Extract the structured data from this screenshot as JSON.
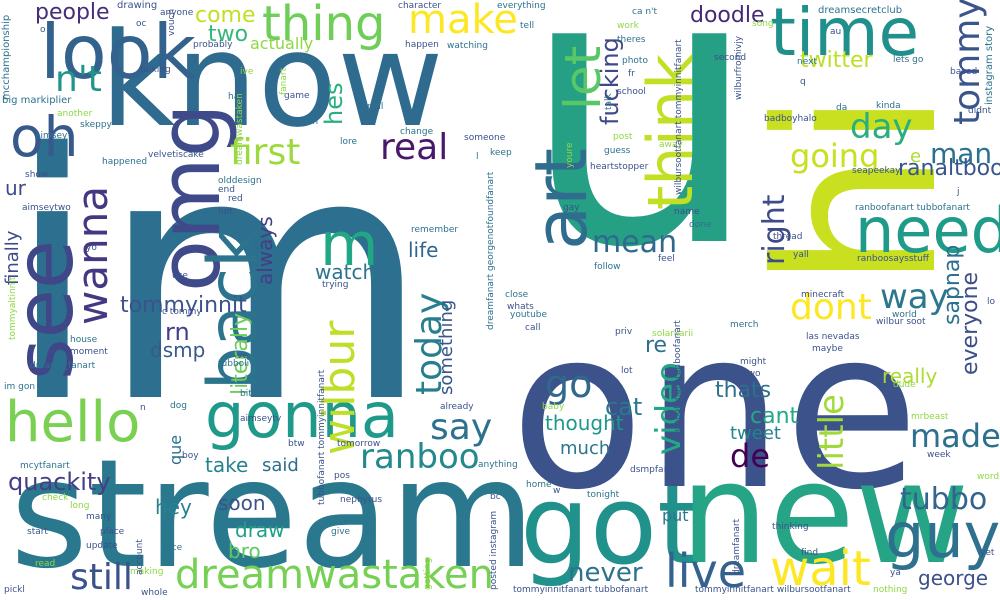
{
  "words": [
    {
      "text": "im",
      "color": "#2c6f8f"
    },
    {
      "text": "u",
      "color": "#25a085"
    },
    {
      "text": "one",
      "color": "#3b528b"
    },
    {
      "text": "know",
      "color": "#2e6b8e"
    },
    {
      "text": "stream",
      "color": "#2a788e"
    },
    {
      "text": "hi",
      "color": "#c8e020"
    },
    {
      "text": "got",
      "color": "#21918c"
    },
    {
      "text": "new",
      "color": "#25a486"
    },
    {
      "text": "look",
      "color": "#33628d"
    },
    {
      "text": "omg",
      "color": "#3e4a89"
    },
    {
      "text": "see",
      "color": "#3f4788"
    },
    {
      "text": "oh",
      "color": "#38598c"
    },
    {
      "text": "hello",
      "color": "#7ad151"
    },
    {
      "text": "gonna",
      "color": "#1f9a8a"
    },
    {
      "text": "back",
      "color": "#2c738e"
    },
    {
      "text": "art",
      "color": "#2f6c8e"
    },
    {
      "text": "let",
      "color": "#58c765"
    },
    {
      "text": "think",
      "color": "#c2df23"
    },
    {
      "text": "time",
      "color": "#21908d"
    },
    {
      "text": "need",
      "color": "#1e9c89"
    },
    {
      "text": "thing",
      "color": "#6ece58"
    },
    {
      "text": "make",
      "color": "#fde725"
    },
    {
      "text": "guy",
      "color": "#2d718e"
    },
    {
      "text": "wait",
      "color": "#fde725"
    },
    {
      "text": "live",
      "color": "#34618d"
    },
    {
      "text": "dreamwastaken",
      "color": "#75d054"
    },
    {
      "text": "still",
      "color": "#3b528b"
    },
    {
      "text": "wilbur",
      "color": "#bddf26"
    },
    {
      "text": "m",
      "color": "#22a785"
    },
    {
      "text": "wanna",
      "color": "#453781"
    },
    {
      "text": "first",
      "color": "#9bd93c"
    },
    {
      "text": "real",
      "color": "#48186a"
    },
    {
      "text": "say",
      "color": "#2c728e"
    },
    {
      "text": "go",
      "color": "#31688e"
    },
    {
      "text": "ranboo",
      "color": "#23898e"
    },
    {
      "text": "video",
      "color": "#22a884"
    },
    {
      "text": "today",
      "color": "#277f8e"
    },
    {
      "text": "day",
      "color": "#29af7f"
    },
    {
      "text": "dont",
      "color": "#fde725"
    },
    {
      "text": "way",
      "color": "#2a778e"
    },
    {
      "text": "made",
      "color": "#2e6f8e"
    },
    {
      "text": "de",
      "color": "#440154"
    },
    {
      "text": "right",
      "color": "#3e4a89"
    },
    {
      "text": "mean",
      "color": "#31688e"
    },
    {
      "text": "going",
      "color": "#c8e020"
    },
    {
      "text": "man",
      "color": "#2c728e"
    },
    {
      "text": "tommy",
      "color": "#3a548c"
    },
    {
      "text": "tubbo",
      "color": "#32648e"
    },
    {
      "text": "little",
      "color": "#9fda3a"
    },
    {
      "text": "george",
      "color": "#3c508b"
    },
    {
      "text": "never",
      "color": "#2c728e"
    },
    {
      "text": "quackity",
      "color": "#433e85"
    },
    {
      "text": "n't",
      "color": "#1f968b"
    },
    {
      "text": "tommyinnit",
      "color": "#3b528b"
    },
    {
      "text": "twitter",
      "color": "#bddf26"
    },
    {
      "text": "doodle",
      "color": "#482878"
    },
    {
      "text": "ranaltboo",
      "color": "#39568c"
    },
    {
      "text": "sapnap",
      "color": "#2d708e"
    },
    {
      "text": "everyone",
      "color": "#3d4e8a"
    },
    {
      "text": "watch",
      "color": "#2b748e"
    },
    {
      "text": "literally",
      "color": "#6ccd5a"
    },
    {
      "text": "always",
      "color": "#433e85"
    },
    {
      "text": "life",
      "color": "#32658e"
    },
    {
      "text": "thought",
      "color": "#1f988b"
    },
    {
      "text": "fucking",
      "color": "#3f4889"
    },
    {
      "text": "cat",
      "color": "#2a788e"
    },
    {
      "text": "thats",
      "color": "#2d708e"
    },
    {
      "text": "cant",
      "color": "#22a884"
    },
    {
      "text": "really",
      "color": "#addc30"
    },
    {
      "text": "tweet",
      "color": "#26828e"
    },
    {
      "text": "much",
      "color": "#2b758e"
    },
    {
      "text": "two",
      "color": "#35b779"
    },
    {
      "text": "come",
      "color": "#c2df23"
    },
    {
      "text": "people",
      "color": "#472c7a"
    },
    {
      "text": "actually",
      "color": "#8fd744"
    },
    {
      "text": "hes",
      "color": "#29af7f"
    },
    {
      "text": "rn",
      "color": "#424086"
    },
    {
      "text": "dsmp",
      "color": "#38598c"
    },
    {
      "text": "ur",
      "color": "#3e4989"
    },
    {
      "text": "take",
      "color": "#26828e"
    },
    {
      "text": "said",
      "color": "#2d708e"
    },
    {
      "text": "soon",
      "color": "#3b528b"
    },
    {
      "text": "hey",
      "color": "#26828e"
    },
    {
      "text": "bro",
      "color": "#5ec962"
    },
    {
      "text": "draw",
      "color": "#1fa188"
    },
    {
      "text": "finally",
      "color": "#3e4989"
    },
    {
      "text": "something",
      "color": "#39568c"
    },
    {
      "text": "put",
      "color": "#2a788e"
    },
    {
      "text": "re",
      "color": "#2d708e"
    },
    {
      "text": "e",
      "color": "#addc30"
    },
    {
      "text": "que",
      "color": "#2d708e"
    },
    {
      "text": "dreamsecretclub",
      "color": "#2b748e"
    },
    {
      "text": "wilburfromivjy",
      "color": "#3b528b"
    },
    {
      "text": "instagram story",
      "color": "#2c728e"
    },
    {
      "text": "mcchampionship",
      "color": "#2c728e"
    },
    {
      "text": "drawing",
      "color": "#3b528b"
    },
    {
      "text": "anyone",
      "color": "#3b528b"
    },
    {
      "text": "character",
      "color": "#3b528b"
    },
    {
      "text": "everything",
      "color": "#2c728e"
    },
    {
      "text": "tell",
      "color": "#2c728e"
    },
    {
      "text": "work",
      "color": "#8fd744"
    },
    {
      "text": "ca n't",
      "color": "#2c728e"
    },
    {
      "text": "theres",
      "color": "#2c728e"
    },
    {
      "text": "fr",
      "color": "#3b528b"
    },
    {
      "text": "photo",
      "color": "#2c728e"
    },
    {
      "text": "school",
      "color": "#3b528b"
    },
    {
      "text": "talk",
      "color": "#2c728e"
    },
    {
      "text": "second",
      "color": "#3b528b"
    },
    {
      "text": "song",
      "color": "#8fd744"
    },
    {
      "text": "next",
      "color": "#2c728e"
    },
    {
      "text": "lets go",
      "color": "#2c728e"
    },
    {
      "text": "based",
      "color": "#3b528b"
    },
    {
      "text": "big markiplier",
      "color": "#2c728e"
    },
    {
      "text": "oc",
      "color": "#3b528b"
    },
    {
      "text": "vouch",
      "color": "#3b528b"
    },
    {
      "text": "probably",
      "color": "#3b528b"
    },
    {
      "text": "ive",
      "color": "#8fd744"
    },
    {
      "text": "talking",
      "color": "#3b528b"
    },
    {
      "text": "happen",
      "color": "#3b528b"
    },
    {
      "text": "watching",
      "color": "#2c728e"
    },
    {
      "text": "hair",
      "color": "#2c728e"
    },
    {
      "text": "game",
      "color": "#3b528b"
    },
    {
      "text": "phil",
      "color": "#2c728e"
    },
    {
      "text": "another",
      "color": "#8fd744"
    },
    {
      "text": "skeppy",
      "color": "#2c728e"
    },
    {
      "text": "aimsey",
      "color": "#2c728e"
    },
    {
      "text": "velvetiscake",
      "color": "#3b528b"
    },
    {
      "text": "happened",
      "color": "#2c728e"
    },
    {
      "text": "show",
      "color": "#3b528b"
    },
    {
      "text": "lore",
      "color": "#2c728e"
    },
    {
      "text": "change",
      "color": "#2c728e"
    },
    {
      "text": "someone",
      "color": "#3b528b"
    },
    {
      "text": "keep",
      "color": "#2c728e"
    },
    {
      "text": "post",
      "color": "#8fd744"
    },
    {
      "text": "away",
      "color": "#8fd744"
    },
    {
      "text": "guess",
      "color": "#2c728e"
    },
    {
      "text": "heartstopper",
      "color": "#3b528b"
    },
    {
      "text": "badboyhalo",
      "color": "#3b528b"
    },
    {
      "text": "da",
      "color": "#2c728e"
    },
    {
      "text": "kinda",
      "color": "#2c728e"
    },
    {
      "text": "didnt",
      "color": "#3b528b"
    },
    {
      "text": "seapeekay",
      "color": "#3b528b"
    },
    {
      "text": "aimseytwo",
      "color": "#3b528b"
    },
    {
      "text": "olddesign",
      "color": "#2c728e"
    },
    {
      "text": "end",
      "color": "#3b528b"
    },
    {
      "text": "red",
      "color": "#3b528b"
    },
    {
      "text": "hot",
      "color": "#3b528b"
    },
    {
      "text": "found",
      "color": "#2c728e"
    },
    {
      "text": "remember",
      "color": "#2c728e"
    },
    {
      "text": "gay",
      "color": "#3b528b"
    },
    {
      "text": "name",
      "color": "#3b528b"
    },
    {
      "text": "done",
      "color": "#2c728e"
    },
    {
      "text": "feel",
      "color": "#3b528b"
    },
    {
      "text": "follow",
      "color": "#2c728e"
    },
    {
      "text": "thread",
      "color": "#3b528b"
    },
    {
      "text": "yall",
      "color": "#3b528b"
    },
    {
      "text": "ranboofanart tubbofanart",
      "color": "#2c728e"
    },
    {
      "text": "ranboosaysstuff",
      "color": "#3b528b"
    },
    {
      "text": "minecraft",
      "color": "#3b528b"
    },
    {
      "text": "world",
      "color": "#2c728e"
    },
    {
      "text": "wilbur soot",
      "color": "#3b528b"
    },
    {
      "text": "lo",
      "color": "#3b528b"
    },
    {
      "text": "yo",
      "color": "#3b528b"
    },
    {
      "text": "use",
      "color": "#3b528b"
    },
    {
      "text": "trying",
      "color": "#3b528b"
    },
    {
      "text": "c tommy",
      "color": "#3b528b"
    },
    {
      "text": "close",
      "color": "#2c728e"
    },
    {
      "text": "whats",
      "color": "#3b528b"
    },
    {
      "text": "youtube",
      "color": "#2c728e"
    },
    {
      "text": "call",
      "color": "#3b528b"
    },
    {
      "text": "priv",
      "color": "#3b528b"
    },
    {
      "text": "solarkarii",
      "color": "#8fd744"
    },
    {
      "text": "merch",
      "color": "#2c728e"
    },
    {
      "text": "las nevadas",
      "color": "#3b528b"
    },
    {
      "text": "maybe",
      "color": "#3b528b"
    },
    {
      "text": "might",
      "color": "#3b528b"
    },
    {
      "text": "lot",
      "color": "#3b528b"
    },
    {
      "text": "tubbotwo",
      "color": "#3b528b"
    },
    {
      "text": "dude",
      "color": "#8fd744"
    },
    {
      "text": "mrbeast",
      "color": "#8fd744"
    },
    {
      "text": "week",
      "color": "#3b528b"
    },
    {
      "text": "word",
      "color": "#8fd744"
    },
    {
      "text": "house",
      "color": "#2c728e"
    },
    {
      "text": "moment",
      "color": "#3b528b"
    },
    {
      "text": "dream__fanart",
      "color": "#2c728e"
    },
    {
      "text": "im gon",
      "color": "#2c728e"
    },
    {
      "text": "tubbolive",
      "color": "#2c728e"
    },
    {
      "text": "ve",
      "color": "#3b528b"
    },
    {
      "text": "bit",
      "color": "#2c728e"
    },
    {
      "text": "dog",
      "color": "#2c728e"
    },
    {
      "text": "n",
      "color": "#3b528b"
    },
    {
      "text": "aimseytv",
      "color": "#3b528b"
    },
    {
      "text": "btw",
      "color": "#3b528b"
    },
    {
      "text": "tomorrow",
      "color": "#3b528b"
    },
    {
      "text": "already",
      "color": "#3b528b"
    },
    {
      "text": "baby",
      "color": "#8fd744"
    },
    {
      "text": "anything",
      "color": "#2c728e"
    },
    {
      "text": "pos",
      "color": "#3b528b"
    },
    {
      "text": "nephyrus",
      "color": "#3b528b"
    },
    {
      "text": "mcytfanart",
      "color": "#2c728e"
    },
    {
      "text": "check",
      "color": "#8fd744"
    },
    {
      "text": "long",
      "color": "#8fd744"
    },
    {
      "text": "many",
      "color": "#3b528b"
    },
    {
      "text": "place",
      "color": "#3b528b"
    },
    {
      "text": "update",
      "color": "#3b528b"
    },
    {
      "text": "start",
      "color": "#3b528b"
    },
    {
      "text": "face",
      "color": "#2c728e"
    },
    {
      "text": "give",
      "color": "#2c728e"
    },
    {
      "text": "home",
      "color": "#2c728e"
    },
    {
      "text": "tonight",
      "color": "#2c728e"
    },
    {
      "text": "bc",
      "color": "#3b528b"
    },
    {
      "text": "dsmpfanart",
      "color": "#3b528b"
    },
    {
      "text": "thinking",
      "color": "#3b528b"
    },
    {
      "text": "find",
      "color": "#3b528b"
    },
    {
      "text": "yet",
      "color": "#3b528b"
    },
    {
      "text": "ya",
      "color": "#3b528b"
    },
    {
      "text": "nothing",
      "color": "#8fd744"
    },
    {
      "text": "whole",
      "color": "#3b528b"
    },
    {
      "text": "making",
      "color": "#8fd744"
    },
    {
      "text": "read",
      "color": "#8fd744"
    },
    {
      "text": "pickl",
      "color": "#3b528b"
    },
    {
      "text": "tommyinnitfanart tubbofanart",
      "color": "#3b528b"
    },
    {
      "text": "tommyinnitfanart wilbursootfanart",
      "color": "#3b528b"
    },
    {
      "text": "posted instagram",
      "color": "#3b528b"
    },
    {
      "text": "getting",
      "color": "#8fd744"
    },
    {
      "text": "account",
      "color": "#3b528b"
    },
    {
      "text": "tommyaltinnit",
      "color": "#8fd744"
    },
    {
      "text": "dreamfanart",
      "color": "#3b528b"
    },
    {
      "text": "dreamfanart georgenotfoundfanart",
      "color": "#2c728e"
    },
    {
      "text": "wilbursootfanart tommyinnitfanart",
      "color": "#3b528b"
    },
    {
      "text": "tubbofanart tommyinnitfanart",
      "color": "#3b528b"
    },
    {
      "text": "tubbofanart ranboofanart",
      "color": "#3b528b"
    },
    {
      "text": "dreamwastaken",
      "color": "#8fd744"
    },
    {
      "text": "youre",
      "color": "#8fd744"
    },
    {
      "text": "fanart",
      "color": "#8fd744"
    },
    {
      "text": "au",
      "color": "#3b528b"
    },
    {
      "text": "q",
      "color": "#3b528b"
    },
    {
      "text": "j",
      "color": "#3b528b"
    },
    {
      "text": "even",
      "color": "#2c728e"
    },
    {
      "text": "l",
      "color": "#2c728e"
    },
    {
      "text": "o",
      "color": "#3b528b"
    },
    {
      "text": "w",
      "color": "#3b528b"
    },
    {
      "text": "boy",
      "color": "#3b528b"
    }
  ]
}
